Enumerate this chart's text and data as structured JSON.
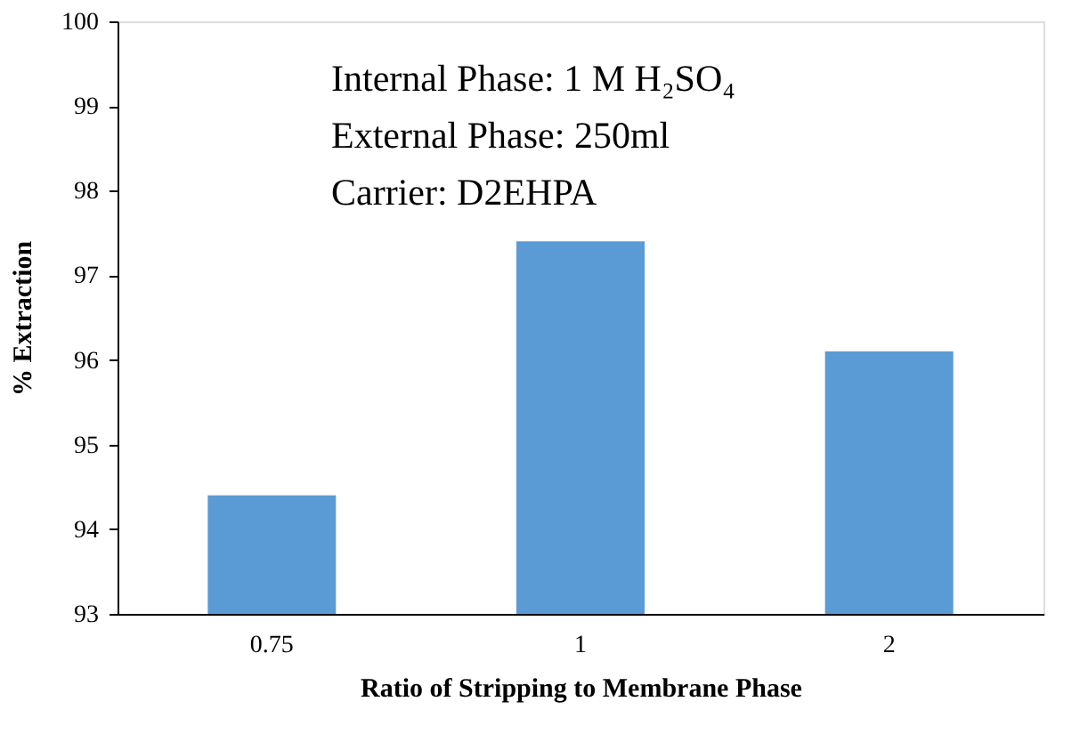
{
  "chart_data": {
    "type": "bar",
    "categories": [
      "0.75",
      "1",
      "2"
    ],
    "values": [
      94.4,
      97.4,
      96.1
    ],
    "color": "#5b9bd5",
    "xlabel": "Ratio of Stripping to Membrane Phase",
    "ylabel": "% Extraction",
    "ylim": [
      93,
      100
    ],
    "yticks": [
      93,
      94,
      95,
      96,
      97,
      98,
      99,
      100
    ],
    "grid": false,
    "annotations": [
      "Internal Phase: 1 M H₂SO₄",
      "External Phase: 250ml",
      "Carrier: D2EHPA"
    ]
  }
}
